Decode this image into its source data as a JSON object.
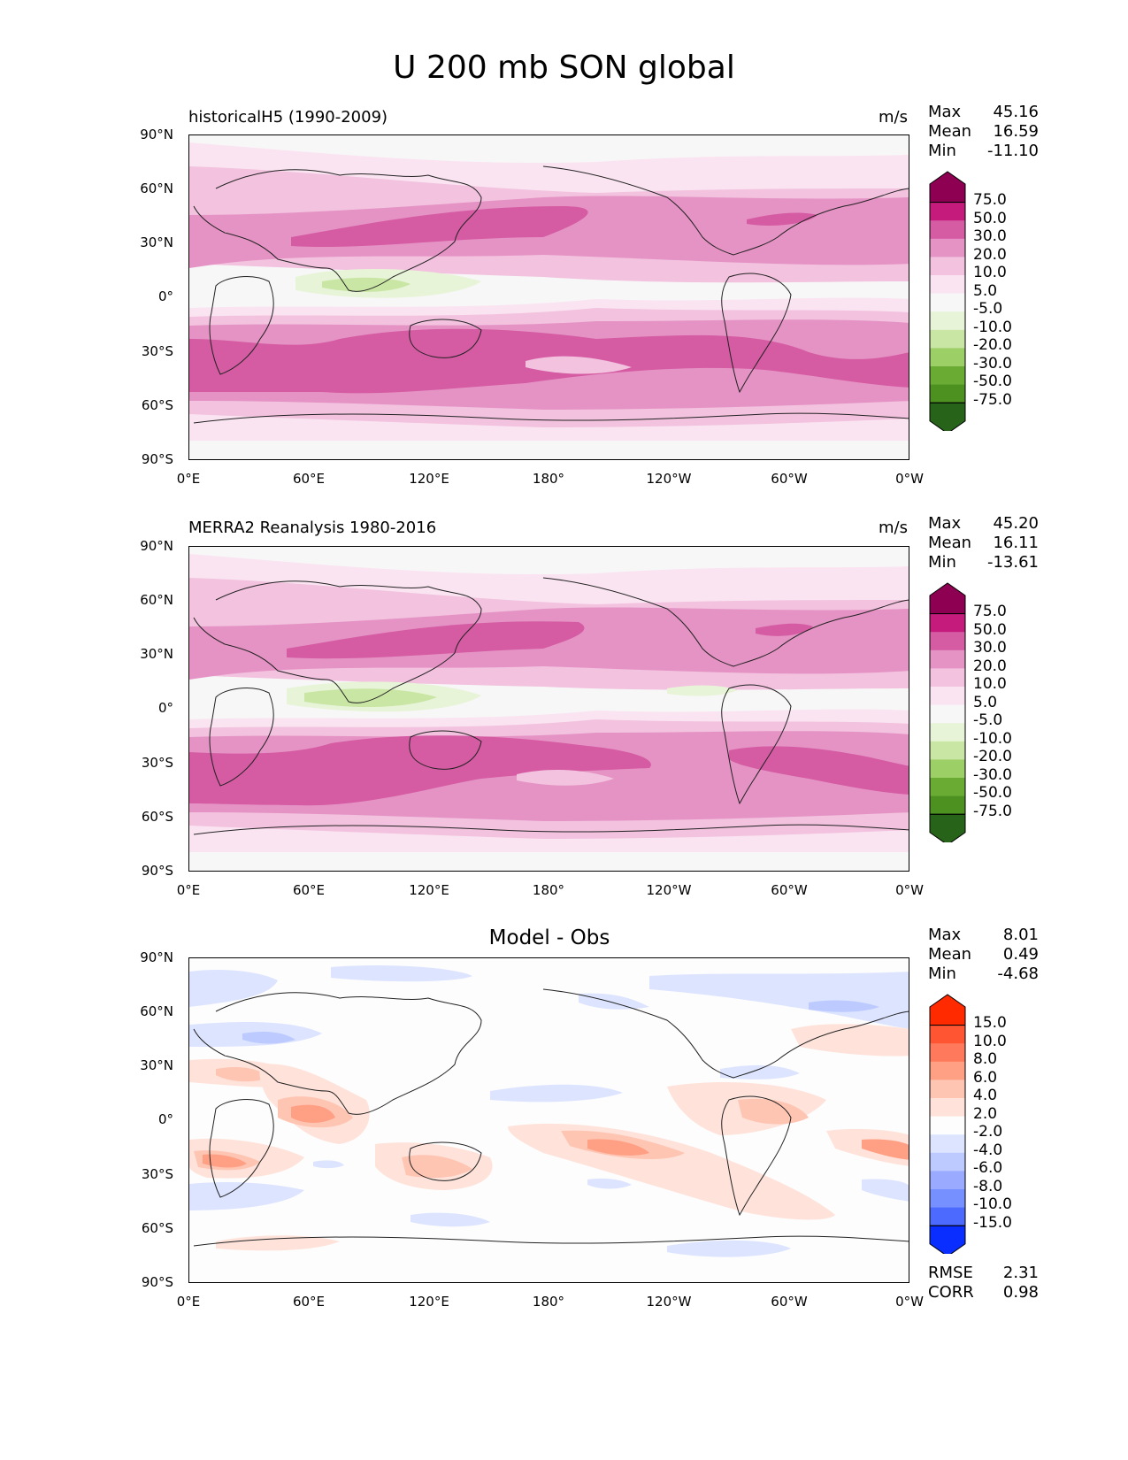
{
  "title": "U 200 mb SON global",
  "panels": {
    "model": {
      "label": "historicalH5 (1990-2009)",
      "units": "m/s",
      "stats": {
        "max_label": "Max",
        "max": "45.16",
        "mean_label": "Mean",
        "mean": "16.59",
        "min_label": "Min",
        "min": "-11.10"
      }
    },
    "obs": {
      "label": "MERRA2 Reanalysis 1980-2016",
      "units": "m/s",
      "stats": {
        "max_label": "Max",
        "max": "45.20",
        "mean_label": "Mean",
        "mean": "16.11",
        "min_label": "Min",
        "min": "-13.61"
      }
    },
    "diff": {
      "label": "Model - Obs",
      "stats": {
        "max_label": "Max",
        "max": "8.01",
        "mean_label": "Mean",
        "mean": "0.49",
        "min_label": "Min",
        "min": "-4.68"
      },
      "metrics": {
        "rmse_label": "RMSE",
        "rmse": "2.31",
        "corr_label": "CORR",
        "corr": "0.98"
      }
    }
  },
  "lat_ticks": [
    "90°N",
    "60°N",
    "30°N",
    "0°",
    "30°S",
    "60°S",
    "90°S"
  ],
  "lon_ticks": [
    "0°E",
    "60°E",
    "120°E",
    "180°",
    "120°W",
    "60°W",
    "0°W"
  ],
  "colorbars": {
    "full": {
      "labels": [
        "75.0",
        "50.0",
        "30.0",
        "20.0",
        "10.0",
        "5.0",
        "-5.0",
        "-10.0",
        "-20.0",
        "-30.0",
        "-50.0",
        "-75.0"
      ],
      "colors": [
        "#8e0152",
        "#c51b7d",
        "#d55ba3",
        "#e593c4",
        "#f2c2df",
        "#fbe4f1",
        "#f7f7f7",
        "#e8f4d8",
        "#c9e6a5",
        "#9ccf65",
        "#6aab33",
        "#4d9221",
        "#276419"
      ]
    },
    "diff": {
      "labels": [
        "15.0",
        "10.0",
        "8.0",
        "6.0",
        "4.0",
        "2.0",
        "-2.0",
        "-4.0",
        "-6.0",
        "-8.0",
        "-10.0",
        "-15.0"
      ],
      "colors": [
        "#ff2a00",
        "#ff5533",
        "#ff7a5c",
        "#ffa085",
        "#ffc5b3",
        "#ffe3da",
        "#fdfdfd",
        "#dde4ff",
        "#bccaff",
        "#99aaff",
        "#7690ff",
        "#4d6aff",
        "#0a2eff"
      ]
    }
  }
}
